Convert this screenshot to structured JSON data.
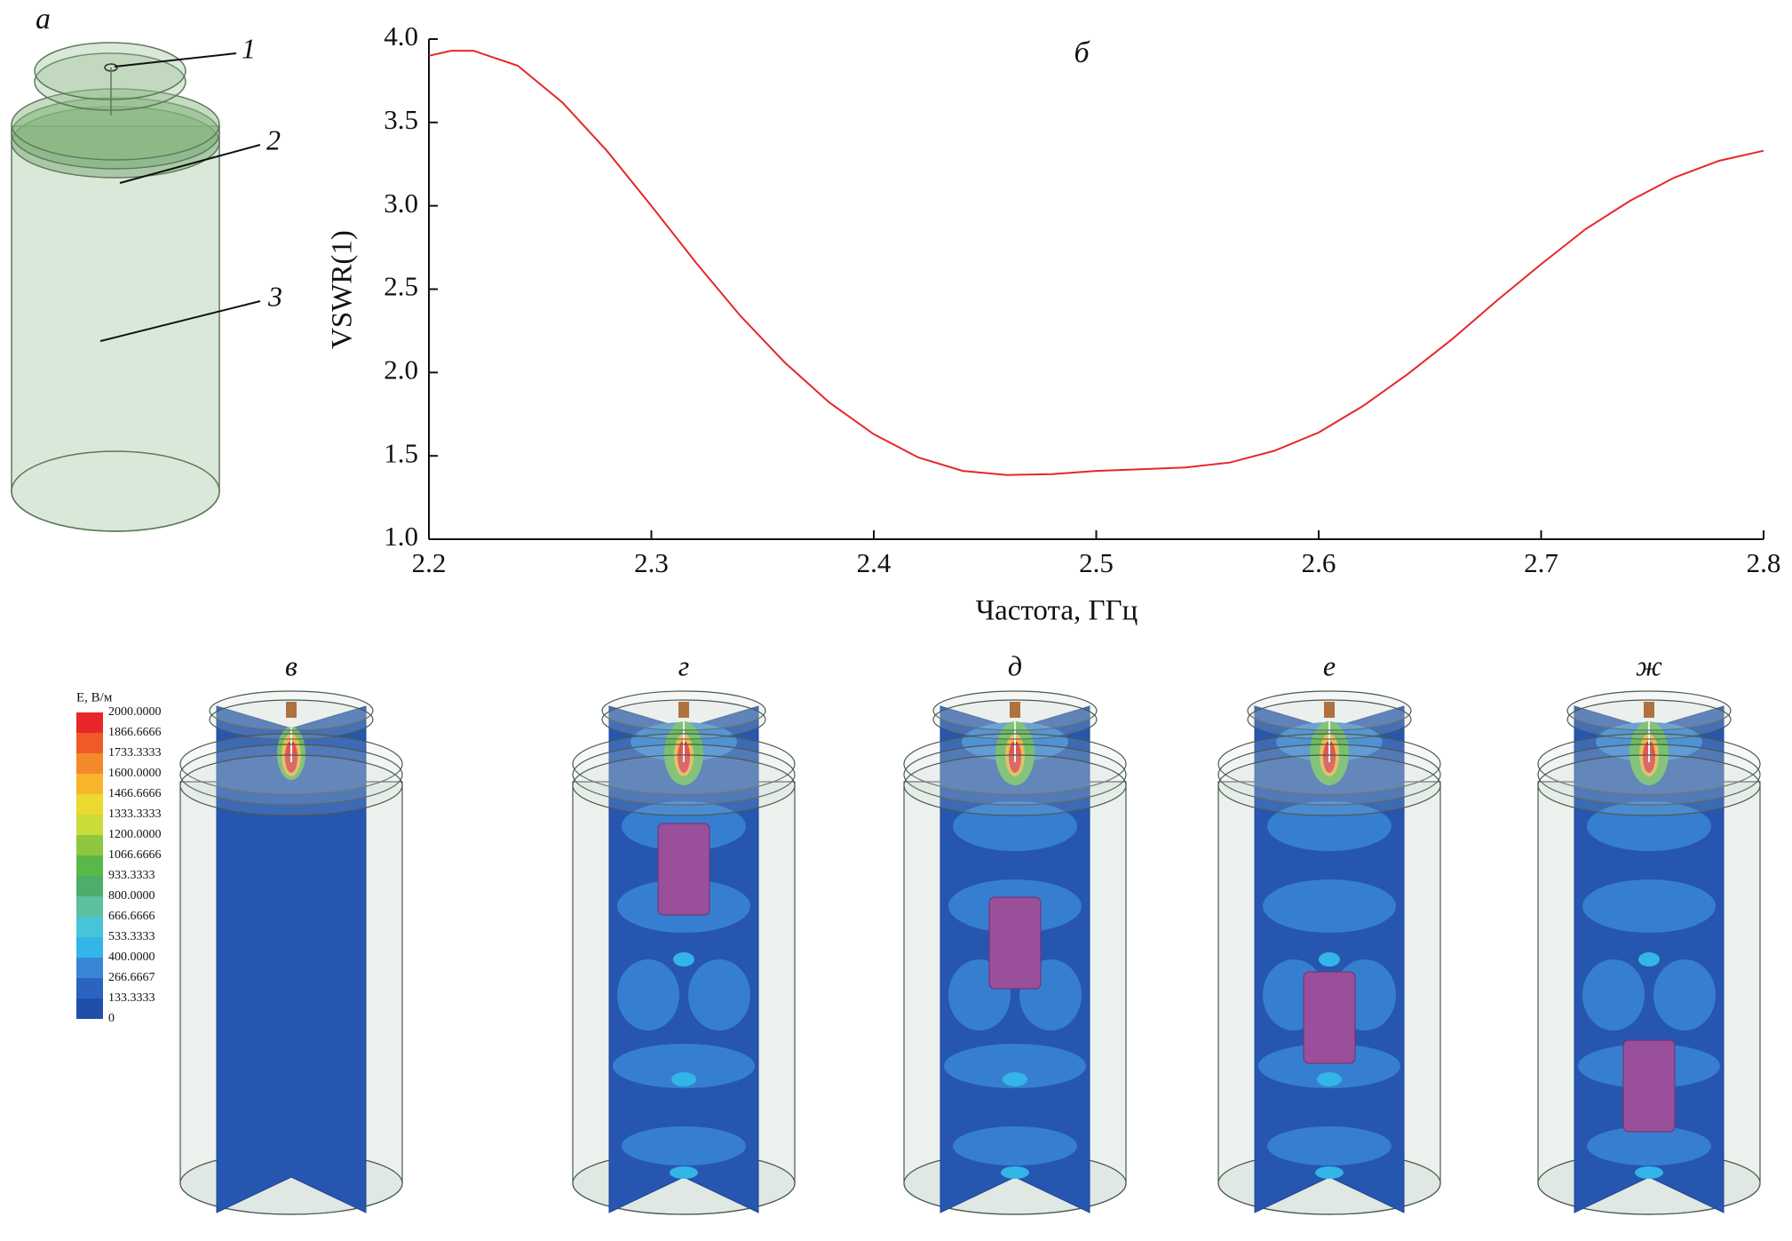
{
  "chart_data": {
    "type": "line",
    "title": "б",
    "x_label": "Частота, ГГц",
    "y_label": "VSWR(1)",
    "x": [
      2.2,
      2.21,
      2.22,
      2.24,
      2.26,
      2.28,
      2.3,
      2.32,
      2.34,
      2.36,
      2.38,
      2.4,
      2.42,
      2.44,
      2.46,
      2.48,
      2.5,
      2.52,
      2.54,
      2.56,
      2.58,
      2.6,
      2.62,
      2.64,
      2.66,
      2.68,
      2.7,
      2.72,
      2.74,
      2.76,
      2.78,
      2.8
    ],
    "values": [
      3.9,
      3.93,
      3.93,
      3.84,
      3.62,
      3.33,
      3.0,
      2.66,
      2.34,
      2.06,
      1.82,
      1.63,
      1.49,
      1.41,
      1.385,
      1.39,
      1.41,
      1.42,
      1.43,
      1.46,
      1.53,
      1.64,
      1.8,
      1.99,
      2.2,
      2.43,
      2.65,
      2.86,
      3.03,
      3.17,
      3.27,
      3.33
    ],
    "color": "#e8262a",
    "xlim": [
      2.2,
      2.8
    ],
    "xticks": [
      2.2,
      2.3,
      2.4,
      2.5,
      2.6,
      2.7,
      2.8
    ],
    "ylim": [
      1,
      4
    ],
    "yticks": [
      {
        "value": 1,
        "label": "1.0"
      },
      {
        "value": 1.5,
        "label": "1.5"
      },
      {
        "value": 2,
        "label": "2.0"
      },
      {
        "value": 2.5,
        "label": "2.5"
      },
      {
        "value": 3,
        "label": "3.0"
      },
      {
        "value": 3.5,
        "label": "3.5"
      },
      {
        "value": 4,
        "label": "4.0"
      }
    ],
    "grid": false
  },
  "diagram": {
    "label": "а",
    "parts": [
      "1",
      "2",
      "3"
    ]
  },
  "field_plots": {
    "labels": [
      "в",
      "г",
      "д",
      "е",
      "ж"
    ]
  },
  "colorbar": {
    "title": "E, В/м",
    "levels": [
      {
        "value": 2000,
        "label": "2000.0000"
      },
      {
        "value": 1866.6666,
        "label": "1866.6666"
      },
      {
        "value": 1733.3333,
        "label": "1733.3333"
      },
      {
        "value": 1600,
        "label": "1600.0000"
      },
      {
        "value": 1466.6666,
        "label": "1466.6666"
      },
      {
        "value": 1333.3333,
        "label": "1333.3333"
      },
      {
        "value": 1200,
        "label": "1200.0000"
      },
      {
        "value": 1066.6666,
        "label": "1066.6666"
      },
      {
        "value": 933.3333,
        "label": "933.3333"
      },
      {
        "value": 800,
        "label": "800.0000"
      },
      {
        "value": 666.6666,
        "label": "666.6666"
      },
      {
        "value": 533.3333,
        "label": "533.3333"
      },
      {
        "value": 400,
        "label": "400.0000"
      },
      {
        "value": 266.6667,
        "label": "266.6667"
      },
      {
        "value": 133.3333,
        "label": "133.3333"
      },
      0
    ],
    "colors": [
      "#e8262a",
      "#f05a28",
      "#f4892a",
      "#f7b52c",
      "#ecd82e",
      "#c9dc3a",
      "#8ec63f",
      "#5ab848",
      "#4cae6a",
      "#5cbf9f",
      "#47c4d8",
      "#33b5e8",
      "#3a86d6",
      "#2b64c0",
      "#1f4fa8"
    ]
  }
}
